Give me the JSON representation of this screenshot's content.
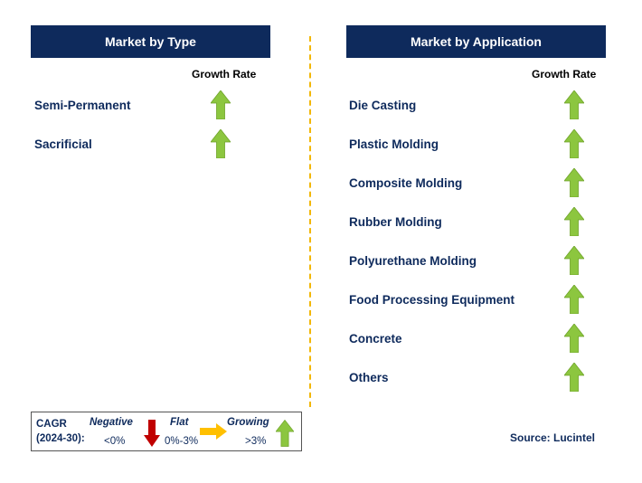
{
  "left_panel": {
    "title": "Market by Type",
    "growth_header": "Growth Rate",
    "items": [
      {
        "label": "Semi-Permanent",
        "trend": "growing"
      },
      {
        "label": "Sacrificial",
        "trend": "growing"
      }
    ]
  },
  "right_panel": {
    "title": "Market by Application",
    "growth_header": "Growth Rate",
    "items": [
      {
        "label": "Die Casting",
        "trend": "growing"
      },
      {
        "label": "Plastic Molding",
        "trend": "growing"
      },
      {
        "label": "Composite Molding",
        "trend": "growing"
      },
      {
        "label": "Rubber Molding",
        "trend": "growing"
      },
      {
        "label": "Polyurethane Molding",
        "trend": "growing"
      },
      {
        "label": "Food Processing Equipment",
        "trend": "growing"
      },
      {
        "label": "Concrete",
        "trend": "growing"
      },
      {
        "label": "Others",
        "trend": "growing"
      }
    ]
  },
  "legend": {
    "cagr_label": "CAGR",
    "period": "(2024-30):",
    "negative": {
      "label": "Negative",
      "range": "<0%"
    },
    "flat": {
      "label": "Flat",
      "range": "0%-3%"
    },
    "growing": {
      "label": "Growing",
      "range": ">3%"
    }
  },
  "source": "Source: Lucintel",
  "colors": {
    "header_bg": "#0e2a5c",
    "growing": "#8cc63f",
    "negative": "#c00000",
    "flat": "#ffc000",
    "divider": "#f2b705"
  }
}
